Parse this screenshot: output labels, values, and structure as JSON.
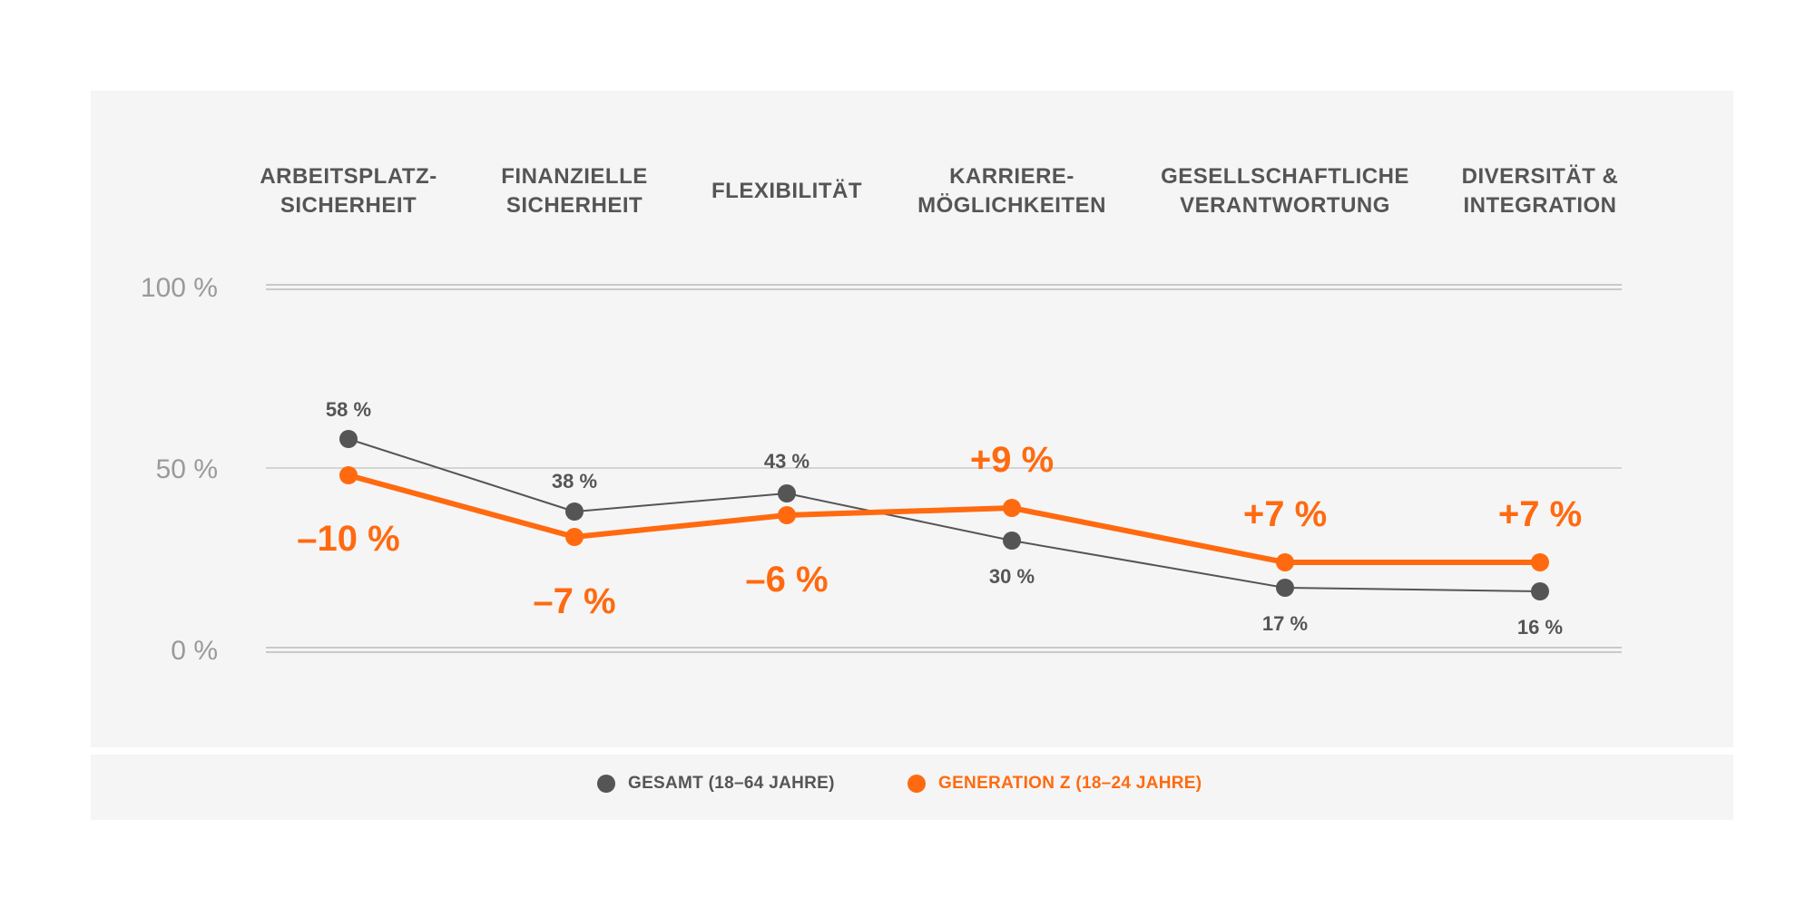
{
  "chart_data": {
    "type": "line",
    "categories": [
      [
        "ARBEITSPLATZ-",
        "SICHERHEIT"
      ],
      [
        "FINANZIELLE",
        "SICHERHEIT"
      ],
      [
        "FLEXIBILITÄT"
      ],
      [
        "KARRIERE-",
        "MÖGLICHKEITEN"
      ],
      [
        "GESELLSCHAFTLICHE",
        "VERANTWORTUNG"
      ],
      [
        "DIVERSITÄT &",
        "INTEGRATION"
      ]
    ],
    "y_ticks": [
      {
        "value": 100,
        "label": "100 %"
      },
      {
        "value": 50,
        "label": "50 %"
      },
      {
        "value": 0,
        "label": "0 %"
      }
    ],
    "ylim": [
      0,
      100
    ],
    "series": [
      {
        "name": "GESAMT (18–64 JAHRE)",
        "color": "#555555",
        "values": [
          58,
          38,
          43,
          30,
          17,
          16
        ],
        "labels": [
          "58 %",
          "38 %",
          "43 %",
          "30 %",
          "17 %",
          "16 %"
        ]
      },
      {
        "name": "GENERATION Z (18–24 JAHRE)",
        "color": "#ff6a10",
        "values": [
          48,
          31,
          37,
          39,
          24,
          24
        ],
        "labels": [
          "–10 %",
          "–7 %",
          "–6 %",
          "+9 %",
          "+7 %",
          "+7 %"
        ]
      }
    ],
    "legend_position": "bottom"
  }
}
